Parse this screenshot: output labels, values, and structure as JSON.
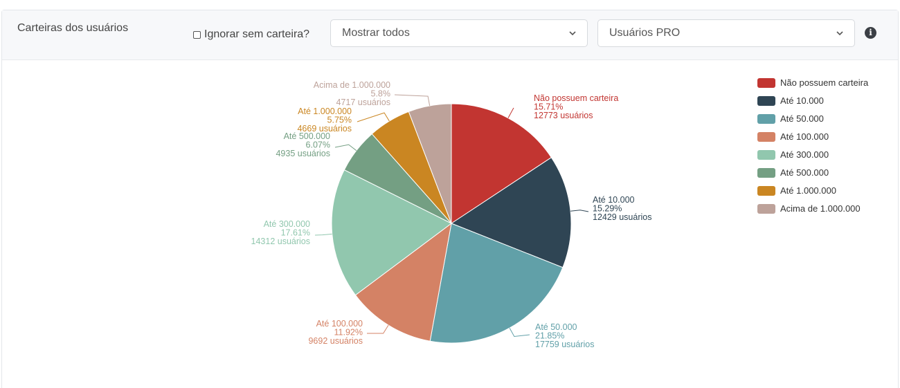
{
  "header": {
    "title": "Carteiras dos usuários",
    "checkbox_label": "Ignorar sem carteira?",
    "select_show": "Mostrar todos",
    "select_users": "Usuários PRO",
    "info_icon": "info-circle-icon"
  },
  "chart_data": {
    "type": "pie",
    "slices": [
      {
        "name": "Não possuem carteira",
        "percent": "15.71%",
        "users": "12773 usuários",
        "value": 12773,
        "color": "#c23531"
      },
      {
        "name": "Até 10.000",
        "percent": "15.29%",
        "users": "12429 usuários",
        "value": 12429,
        "color": "#2f4554"
      },
      {
        "name": "Até 50.000",
        "percent": "21.85%",
        "users": "17759 usuários",
        "value": 17759,
        "color": "#61a0a8"
      },
      {
        "name": "Até 100.000",
        "percent": "11.92%",
        "users": "9692 usuários",
        "value": 9692,
        "color": "#d48265"
      },
      {
        "name": "Até 300.000",
        "percent": "17.61%",
        "users": "14312 usuários",
        "value": 14312,
        "color": "#91c7ae"
      },
      {
        "name": "Até 500.000",
        "percent": "6.07%",
        "users": "4935 usuários",
        "value": 4935,
        "color": "#749f83"
      },
      {
        "name": "Até 1.000.000",
        "percent": "5.75%",
        "users": "4669 usuários",
        "value": 4669,
        "color": "#ca8622"
      },
      {
        "name": "Acima de 1.000.000",
        "percent": "5.8%",
        "users": "4717 usuários",
        "value": 4717,
        "color": "#bda29a"
      }
    ],
    "legend_position": "top-right"
  }
}
